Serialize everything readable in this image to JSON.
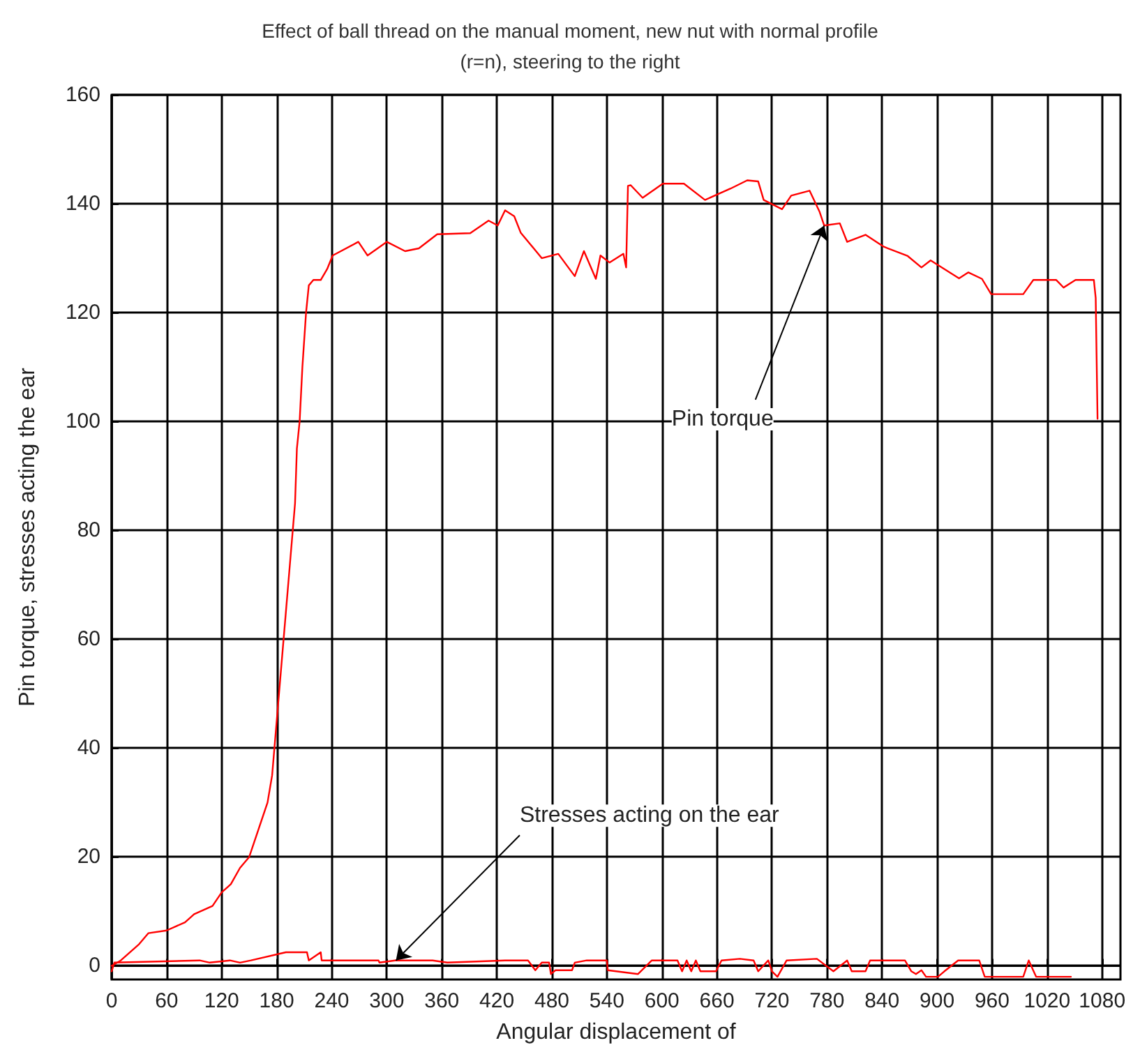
{
  "chart_data": {
    "type": "line",
    "title": "Effect of ball thread on the manual moment, new nut with normal profile\n(r=n), steering to the right",
    "xlabel": "Angular displacement of",
    "ylabel": "Pin torque, stresses acting the ear",
    "x": [
      0,
      10,
      30,
      40,
      60,
      80,
      90,
      110,
      120,
      130,
      140,
      150,
      160,
      170,
      175,
      180,
      185,
      190,
      195,
      200,
      202,
      205,
      208,
      212,
      215,
      220,
      228,
      235,
      241,
      269,
      279,
      300,
      320,
      335,
      355,
      391,
      411,
      421,
      429,
      439,
      446,
      469,
      487,
      505,
      515,
      528,
      533,
      543,
      558,
      561,
      563,
      566,
      579,
      601,
      624,
      647,
      675,
      693,
      705,
      711,
      731,
      741,
      761,
      772,
      777,
      794,
      802,
      822,
      842,
      868,
      883,
      893,
      924,
      934,
      949,
      959,
      994,
      1005,
      1030,
      1038,
      1051,
      1071,
      1073,
      1075
    ],
    "xlim": [
      0,
      1100
    ],
    "ylim": [
      -2.5,
      160
    ],
    "xticks": [
      0,
      60,
      120,
      180,
      240,
      300,
      360,
      420,
      480,
      540,
      600,
      660,
      720,
      780,
      840,
      900,
      960,
      1020,
      1080
    ],
    "yticks": [
      0,
      20,
      40,
      60,
      80,
      100,
      120,
      140,
      160
    ],
    "grid": true,
    "marker": "none",
    "line_style": "solid",
    "series": [
      {
        "color": "#ff0000",
        "values": [
          0,
          1,
          4,
          6,
          6.5,
          8,
          9.5,
          11,
          13.5,
          15,
          18,
          20,
          25,
          30,
          35,
          45,
          55,
          65,
          75,
          85,
          95,
          100,
          110,
          120,
          125,
          126,
          126,
          128,
          130.5,
          133,
          130.5,
          133,
          131.3,
          131.8,
          134.4,
          134.6,
          136.9,
          136,
          138.8,
          137.7,
          134.7,
          130,
          130.8,
          126.7,
          131.3,
          126.2,
          130.5,
          129.2,
          130.8,
          128.3,
          143.3,
          143.4,
          141.1,
          143.7,
          143.7,
          140.7,
          142.8,
          144.3,
          144.1,
          140.7,
          139,
          141.5,
          142.4,
          138.5,
          136,
          136.4,
          133,
          134.3,
          132.1,
          130.4,
          128.3,
          129.6,
          126.3,
          127.4,
          126.2,
          123.4,
          123.4,
          126,
          126,
          124.6,
          126,
          126,
          122.7,
          100.5
        ]
      },
      {
        "color": "#ff0000",
        "x": [
          0,
          3,
          96,
          107,
          129,
          140,
          152,
          190,
          213,
          215,
          228,
          229,
          291,
          292,
          309,
          350,
          366,
          429,
          454,
          462,
          469,
          477,
          479,
          484,
          502,
          505,
          518,
          540,
          541,
          574,
          589,
          617,
          622,
          627,
          632,
          637,
          642,
          659,
          665,
          685,
          700,
          705,
          716,
          720,
          726,
          736,
          769,
          787,
          802,
          807,
          822,
          827,
          865,
          872,
          877,
          883,
          888,
          901,
          908,
          923,
          946,
          952,
          994,
          1000,
          1008,
          1046
        ],
        "values": [
          -1,
          0.6,
          1,
          0.6,
          1,
          0.6,
          1,
          2.5,
          2.5,
          1,
          2.5,
          1,
          1,
          0.6,
          1,
          1,
          0.6,
          1,
          1,
          -0.8,
          0.6,
          0.6,
          -1.5,
          -0.8,
          -0.8,
          0.6,
          1,
          1,
          -0.8,
          -1.5,
          1,
          1,
          -1,
          1,
          -1,
          1,
          -1,
          -1,
          1,
          1.3,
          1,
          -1,
          1,
          -1,
          -2,
          1,
          1.3,
          -1,
          1,
          -1,
          -1,
          1,
          1,
          -1,
          -1.5,
          -0.8,
          -2,
          -2,
          -1,
          1,
          1,
          -2,
          -2,
          1,
          -2,
          -2
        ]
      }
    ],
    "annotations": [
      {
        "text": "Pin torque",
        "x": 777,
        "y": 136
      },
      {
        "text": "Stresses acting on the ear",
        "x": 310,
        "y": 1
      }
    ]
  }
}
